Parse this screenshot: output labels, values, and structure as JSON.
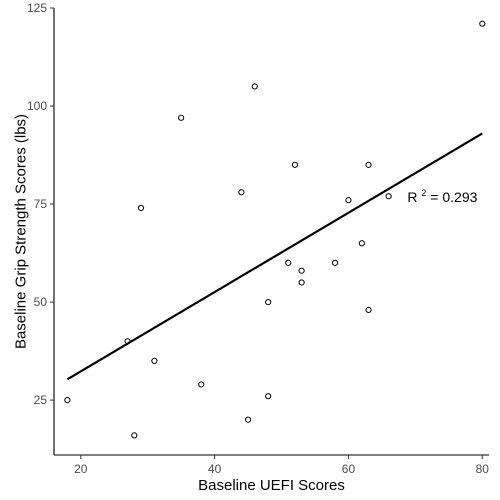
{
  "chart_data": {
    "type": "scatter",
    "xlabel": "Baseline UEFI Scores",
    "ylabel": "Baseline Grip Strength Scores (lbs)",
    "xlim": [
      16,
      81
    ],
    "ylim": [
      11,
      125
    ],
    "x_ticks": [
      20,
      40,
      60,
      80
    ],
    "y_ticks": [
      25,
      50,
      75,
      100,
      125
    ],
    "grid": false,
    "points": [
      {
        "x": 18,
        "y": 25
      },
      {
        "x": 27,
        "y": 40
      },
      {
        "x": 28,
        "y": 16
      },
      {
        "x": 29,
        "y": 74
      },
      {
        "x": 31,
        "y": 35
      },
      {
        "x": 35,
        "y": 97
      },
      {
        "x": 38,
        "y": 29
      },
      {
        "x": 44,
        "y": 78
      },
      {
        "x": 45,
        "y": 20
      },
      {
        "x": 46,
        "y": 105
      },
      {
        "x": 48,
        "y": 26
      },
      {
        "x": 48,
        "y": 50
      },
      {
        "x": 51,
        "y": 60
      },
      {
        "x": 52,
        "y": 85
      },
      {
        "x": 53,
        "y": 58
      },
      {
        "x": 53,
        "y": 55
      },
      {
        "x": 58,
        "y": 60
      },
      {
        "x": 60,
        "y": 76
      },
      {
        "x": 62,
        "y": 65
      },
      {
        "x": 63,
        "y": 85
      },
      {
        "x": 63,
        "y": 48
      },
      {
        "x": 66,
        "y": 77
      },
      {
        "x": 80,
        "y": 121
      }
    ],
    "fit_line": {
      "x": [
        18,
        80
      ],
      "y": [
        30.3,
        93
      ]
    },
    "annotation": {
      "base": "R",
      "sup": "2",
      "rest": " = 0.293",
      "x": 70,
      "y": 76
    }
  }
}
